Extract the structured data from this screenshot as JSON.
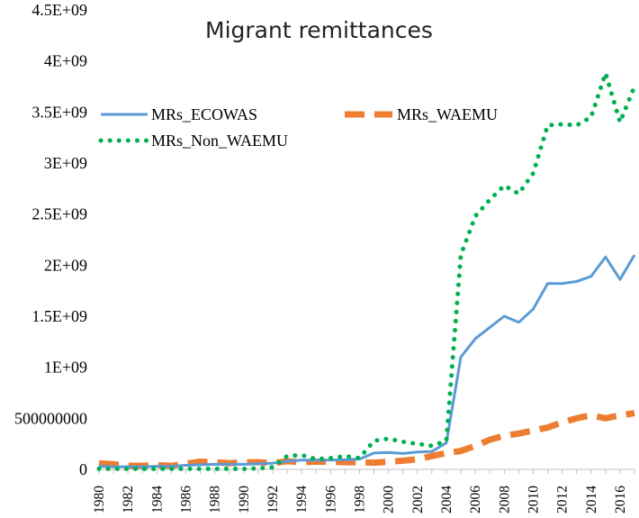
{
  "chart_data": {
    "type": "line",
    "title": "Migrant remittances",
    "xlabel": "",
    "ylabel": "",
    "ylim": [
      0,
      4500000000
    ],
    "y_ticks": [
      0,
      500000000,
      1000000000,
      1500000000,
      2000000000,
      2500000000,
      3000000000,
      3500000000,
      4000000000,
      4500000000
    ],
    "y_tick_labels": [
      "0",
      "500000000",
      "1E+09",
      "1.5E+09",
      "2E+09",
      "2.5E+09",
      "3E+09",
      "3.5E+09",
      "4E+09",
      "4.5E+09"
    ],
    "x_tick_labels": [
      "1980",
      "1982",
      "1984",
      "1986",
      "1988",
      "1990",
      "1992",
      "1994",
      "1996",
      "1998",
      "2000",
      "2002",
      "2004",
      "2006",
      "2008",
      "2010",
      "2012",
      "2014",
      "2016"
    ],
    "x": [
      1980,
      1981,
      1982,
      1983,
      1984,
      1985,
      1986,
      1987,
      1988,
      1989,
      1990,
      1991,
      1992,
      1993,
      1994,
      1995,
      1996,
      1997,
      1998,
      1999,
      2000,
      2001,
      2002,
      2003,
      2004,
      2005,
      2006,
      2007,
      2008,
      2009,
      2010,
      2011,
      2012,
      2013,
      2014,
      2015,
      2016,
      2017
    ],
    "grid": false,
    "legend_position": "top-left",
    "series": [
      {
        "name": "MRs_ECOWAS",
        "style": "solid",
        "color": "#5b9bd5",
        "values": [
          30000000,
          25000000,
          25000000,
          25000000,
          30000000,
          30000000,
          40000000,
          45000000,
          50000000,
          50000000,
          50000000,
          55000000,
          60000000,
          80000000,
          90000000,
          90000000,
          90000000,
          95000000,
          100000000,
          160000000,
          165000000,
          155000000,
          170000000,
          175000000,
          260000000,
          1100000000,
          1280000000,
          1390000000,
          1500000000,
          1440000000,
          1570000000,
          1820000000,
          1820000000,
          1840000000,
          1890000000,
          2080000000,
          1860000000,
          2100000000
        ]
      },
      {
        "name": "MRs_WAEMU",
        "style": "dashed",
        "color": "#ed7d31",
        "values": [
          60000000,
          50000000,
          35000000,
          35000000,
          40000000,
          35000000,
          55000000,
          75000000,
          70000000,
          60000000,
          70000000,
          70000000,
          60000000,
          80000000,
          70000000,
          75000000,
          75000000,
          70000000,
          70000000,
          65000000,
          75000000,
          85000000,
          100000000,
          130000000,
          160000000,
          180000000,
          230000000,
          290000000,
          330000000,
          350000000,
          380000000,
          410000000,
          460000000,
          500000000,
          530000000,
          500000000,
          530000000,
          550000000
        ]
      },
      {
        "name": "MRs_Non_WAEMU",
        "style": "dotted",
        "color": "#00b050",
        "values": [
          5000000,
          5000000,
          5000000,
          5000000,
          5000000,
          5000000,
          5000000,
          5000000,
          5000000,
          5000000,
          5000000,
          10000000,
          20000000,
          130000000,
          140000000,
          100000000,
          110000000,
          130000000,
          110000000,
          280000000,
          300000000,
          270000000,
          250000000,
          230000000,
          280000000,
          2100000000,
          2480000000,
          2640000000,
          2780000000,
          2700000000,
          2900000000,
          3370000000,
          3380000000,
          3370000000,
          3450000000,
          3880000000,
          3400000000,
          3750000000
        ]
      }
    ]
  }
}
